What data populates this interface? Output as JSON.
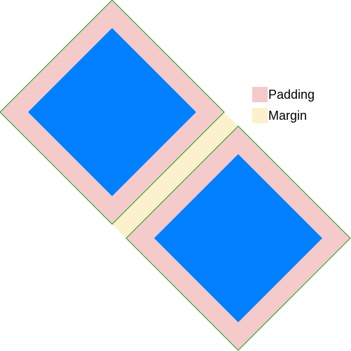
{
  "colors": {
    "margin": "#fcf1cc",
    "padding": "#f4caca",
    "content": "#0080ff",
    "outline": "#1aa01a"
  },
  "legend": {
    "items": [
      {
        "key": "padding",
        "label": "Padding"
      },
      {
        "key": "margin",
        "label": "Margin"
      }
    ]
  }
}
